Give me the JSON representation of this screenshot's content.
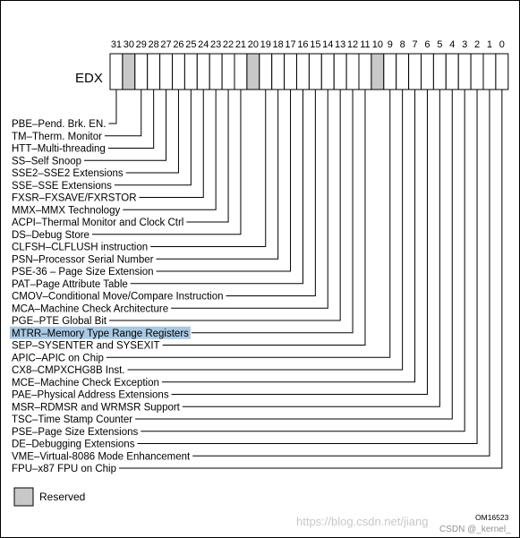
{
  "register": {
    "name": "EDX"
  },
  "reserved_bits": [
    30,
    20,
    10
  ],
  "bit_numbers": [
    "31",
    "30",
    "29",
    "28",
    "27",
    "26",
    "25",
    "24",
    "23",
    "22",
    "21",
    "20",
    "19",
    "18",
    "17",
    "16",
    "15",
    "14",
    "13",
    "12",
    "11",
    "10",
    "9",
    "8",
    "7",
    "6",
    "5",
    "4",
    "3",
    "2",
    "1",
    "0"
  ],
  "features": [
    {
      "bit": 31,
      "label": "PBE–Pend. Brk. EN."
    },
    {
      "bit": 29,
      "label": "TM–Therm. Monitor"
    },
    {
      "bit": 28,
      "label": "HTT–Multi-threading"
    },
    {
      "bit": 27,
      "label": "SS–Self Snoop"
    },
    {
      "bit": 26,
      "label": "SSE2–SSE2 Extensions"
    },
    {
      "bit": 25,
      "label": "SSE–SSE Extensions"
    },
    {
      "bit": 24,
      "label": "FXSR–FXSAVE/FXRSTOR"
    },
    {
      "bit": 23,
      "label": "MMX–MMX Technology"
    },
    {
      "bit": 22,
      "label": "ACPI–Thermal Monitor and Clock Ctrl"
    },
    {
      "bit": 21,
      "label": "DS–Debug Store"
    },
    {
      "bit": 19,
      "label": "CLFSH–CLFLUSH instruction"
    },
    {
      "bit": 18,
      "label": "PSN–Processor Serial Number"
    },
    {
      "bit": 17,
      "label": "PSE-36 – Page Size Extension"
    },
    {
      "bit": 16,
      "label": "PAT–Page Attribute Table"
    },
    {
      "bit": 15,
      "label": "CMOV–Conditional Move/Compare Instruction"
    },
    {
      "bit": 14,
      "label": "MCA–Machine Check Architecture"
    },
    {
      "bit": 13,
      "label": "PGE–PTE Global Bit"
    },
    {
      "bit": 12,
      "label": "MTRR–Memory Type Range Registers",
      "highlighted": true
    },
    {
      "bit": 11,
      "label": "SEP–SYSENTER and SYSEXIT"
    },
    {
      "bit": 9,
      "label": "APIC–APIC on Chip"
    },
    {
      "bit": 8,
      "label": "CX8–CMPXCHG8B Inst."
    },
    {
      "bit": 7,
      "label": "MCE–Machine Check Exception"
    },
    {
      "bit": 6,
      "label": "PAE–Physical Address Extensions"
    },
    {
      "bit": 5,
      "label": "MSR–RDMSR and WRMSR Support"
    },
    {
      "bit": 4,
      "label": "TSC–Time Stamp Counter"
    },
    {
      "bit": 3,
      "label": "PSE–Page Size Extensions"
    },
    {
      "bit": 2,
      "label": "DE–Debugging Extensions"
    },
    {
      "bit": 1,
      "label": "VME–Virtual-8086 Mode Enhancement"
    },
    {
      "bit": 0,
      "label": "FPU–x87 FPU on Chip"
    }
  ],
  "legend": {
    "label": "Reserved"
  },
  "figure_code": "OM16523",
  "watermark": {
    "url": "https://blog.csdn.net/jiang",
    "credit": "CSDN @_kernel_"
  },
  "colors": {
    "reserved_fill": "#c8c8c8",
    "highlight": "#a9c9e3",
    "line": "#000000"
  }
}
